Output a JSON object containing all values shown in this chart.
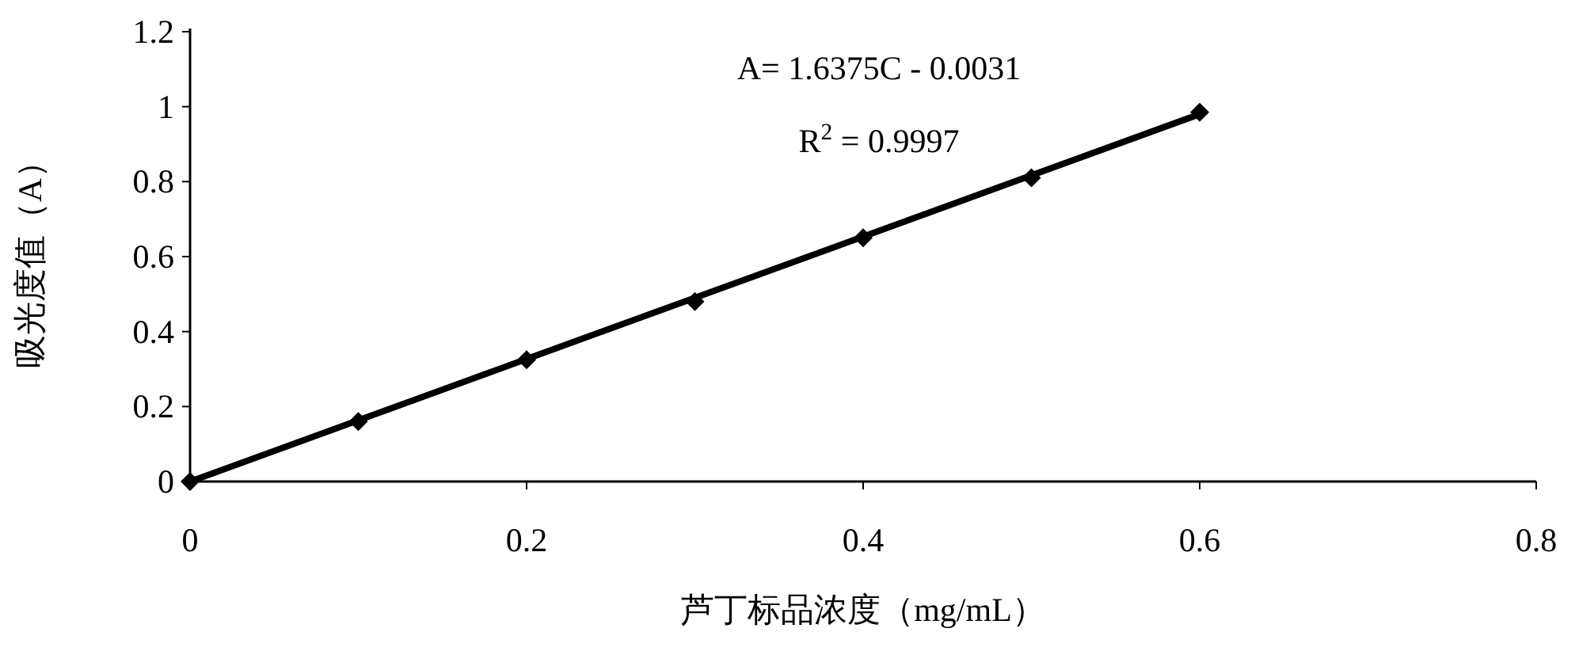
{
  "chart_data": {
    "type": "scatter",
    "xlabel": "芦丁标品浓度（mg/mL）",
    "ylabel": "吸光度值（A）",
    "x": [
      0,
      0.1,
      0.2,
      0.3,
      0.4,
      0.5,
      0.6
    ],
    "series": [
      {
        "color": "#000000",
        "marker": "diamond",
        "values": [
          0,
          0.16,
          0.325,
          0.48,
          0.65,
          0.81,
          0.985
        ]
      },
      {
        "type": "line",
        "color": "#000000",
        "x": [
          0,
          0.6
        ],
        "values": [
          0,
          0.98
        ]
      }
    ],
    "xlim": [
      0,
      0.8
    ],
    "xticks": [
      0,
      {
        "value": 0.2,
        "label": "0.2"
      },
      {
        "value": 0.4,
        "label": "0.4"
      },
      {
        "value": 0.6,
        "label": "0.6"
      },
      {
        "value": 0.8,
        "label": "0.8"
      }
    ],
    "ylim": [
      0,
      1.2
    ],
    "yticks": [
      0,
      {
        "value": 0.2,
        "label": "0.2"
      },
      {
        "value": 0.4,
        "label": "0.4"
      },
      {
        "value": 0.6,
        "label": "0.6"
      },
      {
        "value": 0.8,
        "label": "0.8"
      },
      1,
      {
        "value": 1.2,
        "label": "1.2"
      }
    ],
    "grid": false,
    "annotations": [
      "A= 1.6375C - 0.0031",
      "R$^{2}$ = 0.9997"
    ]
  }
}
